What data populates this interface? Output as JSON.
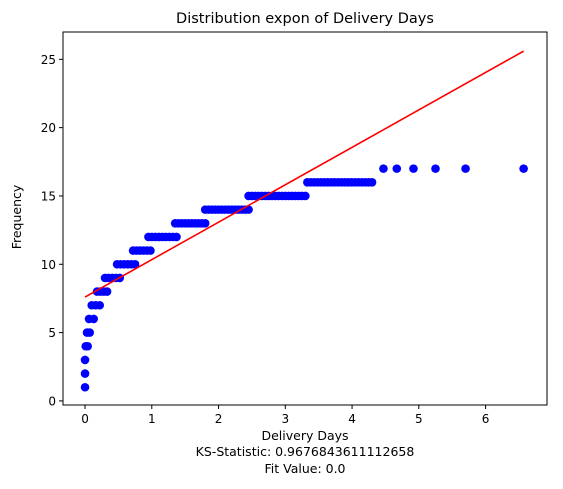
{
  "chart_data": {
    "type": "scatter",
    "title": "Distribution expon of Delivery Days",
    "xlabel": "Delivery Days",
    "ylabel": "Frequency",
    "footer_lines": [
      "KS-Statistic: 0.9676843611112658",
      "Fit Value: 0.0"
    ],
    "xlim": [
      -0.33,
      6.92
    ],
    "ylim": [
      -0.3,
      27
    ],
    "x_ticks": [
      0,
      1,
      2,
      3,
      4,
      5,
      6
    ],
    "y_ticks": [
      0,
      5,
      10,
      15,
      20,
      25
    ],
    "grid": false,
    "colors": {
      "points": "#0000ff",
      "line": "#ff0000",
      "axes": "#000000"
    },
    "series": [
      {
        "kind": "points",
        "runs": [
          {
            "y": 1,
            "x_start": 0.0,
            "x_end": 0.0
          },
          {
            "y": 2,
            "x_start": 0.0,
            "x_end": 0.0
          },
          {
            "y": 3,
            "x_start": 0.0,
            "x_end": 0.0
          },
          {
            "y": 4,
            "x_start": 0.01,
            "x_end": 0.04
          },
          {
            "y": 5,
            "x_start": 0.03,
            "x_end": 0.07
          },
          {
            "y": 6,
            "x_start": 0.06,
            "x_end": 0.13
          },
          {
            "y": 7,
            "x_start": 0.1,
            "x_end": 0.22
          },
          {
            "y": 8,
            "x_start": 0.18,
            "x_end": 0.33
          },
          {
            "y": 9,
            "x_start": 0.3,
            "x_end": 0.52
          },
          {
            "y": 10,
            "x_start": 0.48,
            "x_end": 0.75
          },
          {
            "y": 11,
            "x_start": 0.72,
            "x_end": 0.98
          },
          {
            "y": 12,
            "x_start": 0.95,
            "x_end": 1.37
          },
          {
            "y": 13,
            "x_start": 1.35,
            "x_end": 1.8
          },
          {
            "y": 14,
            "x_start": 1.8,
            "x_end": 2.45
          },
          {
            "y": 15,
            "x_start": 2.45,
            "x_end": 3.3
          },
          {
            "y": 16,
            "x_start": 3.33,
            "x_end": 4.3
          },
          {
            "y": 17,
            "x_list": [
              4.47,
              4.67,
              4.92,
              5.25,
              5.7,
              6.57
            ]
          }
        ]
      },
      {
        "kind": "line",
        "x": [
          0.0,
          6.57
        ],
        "y": [
          7.6,
          25.6
        ]
      }
    ]
  }
}
